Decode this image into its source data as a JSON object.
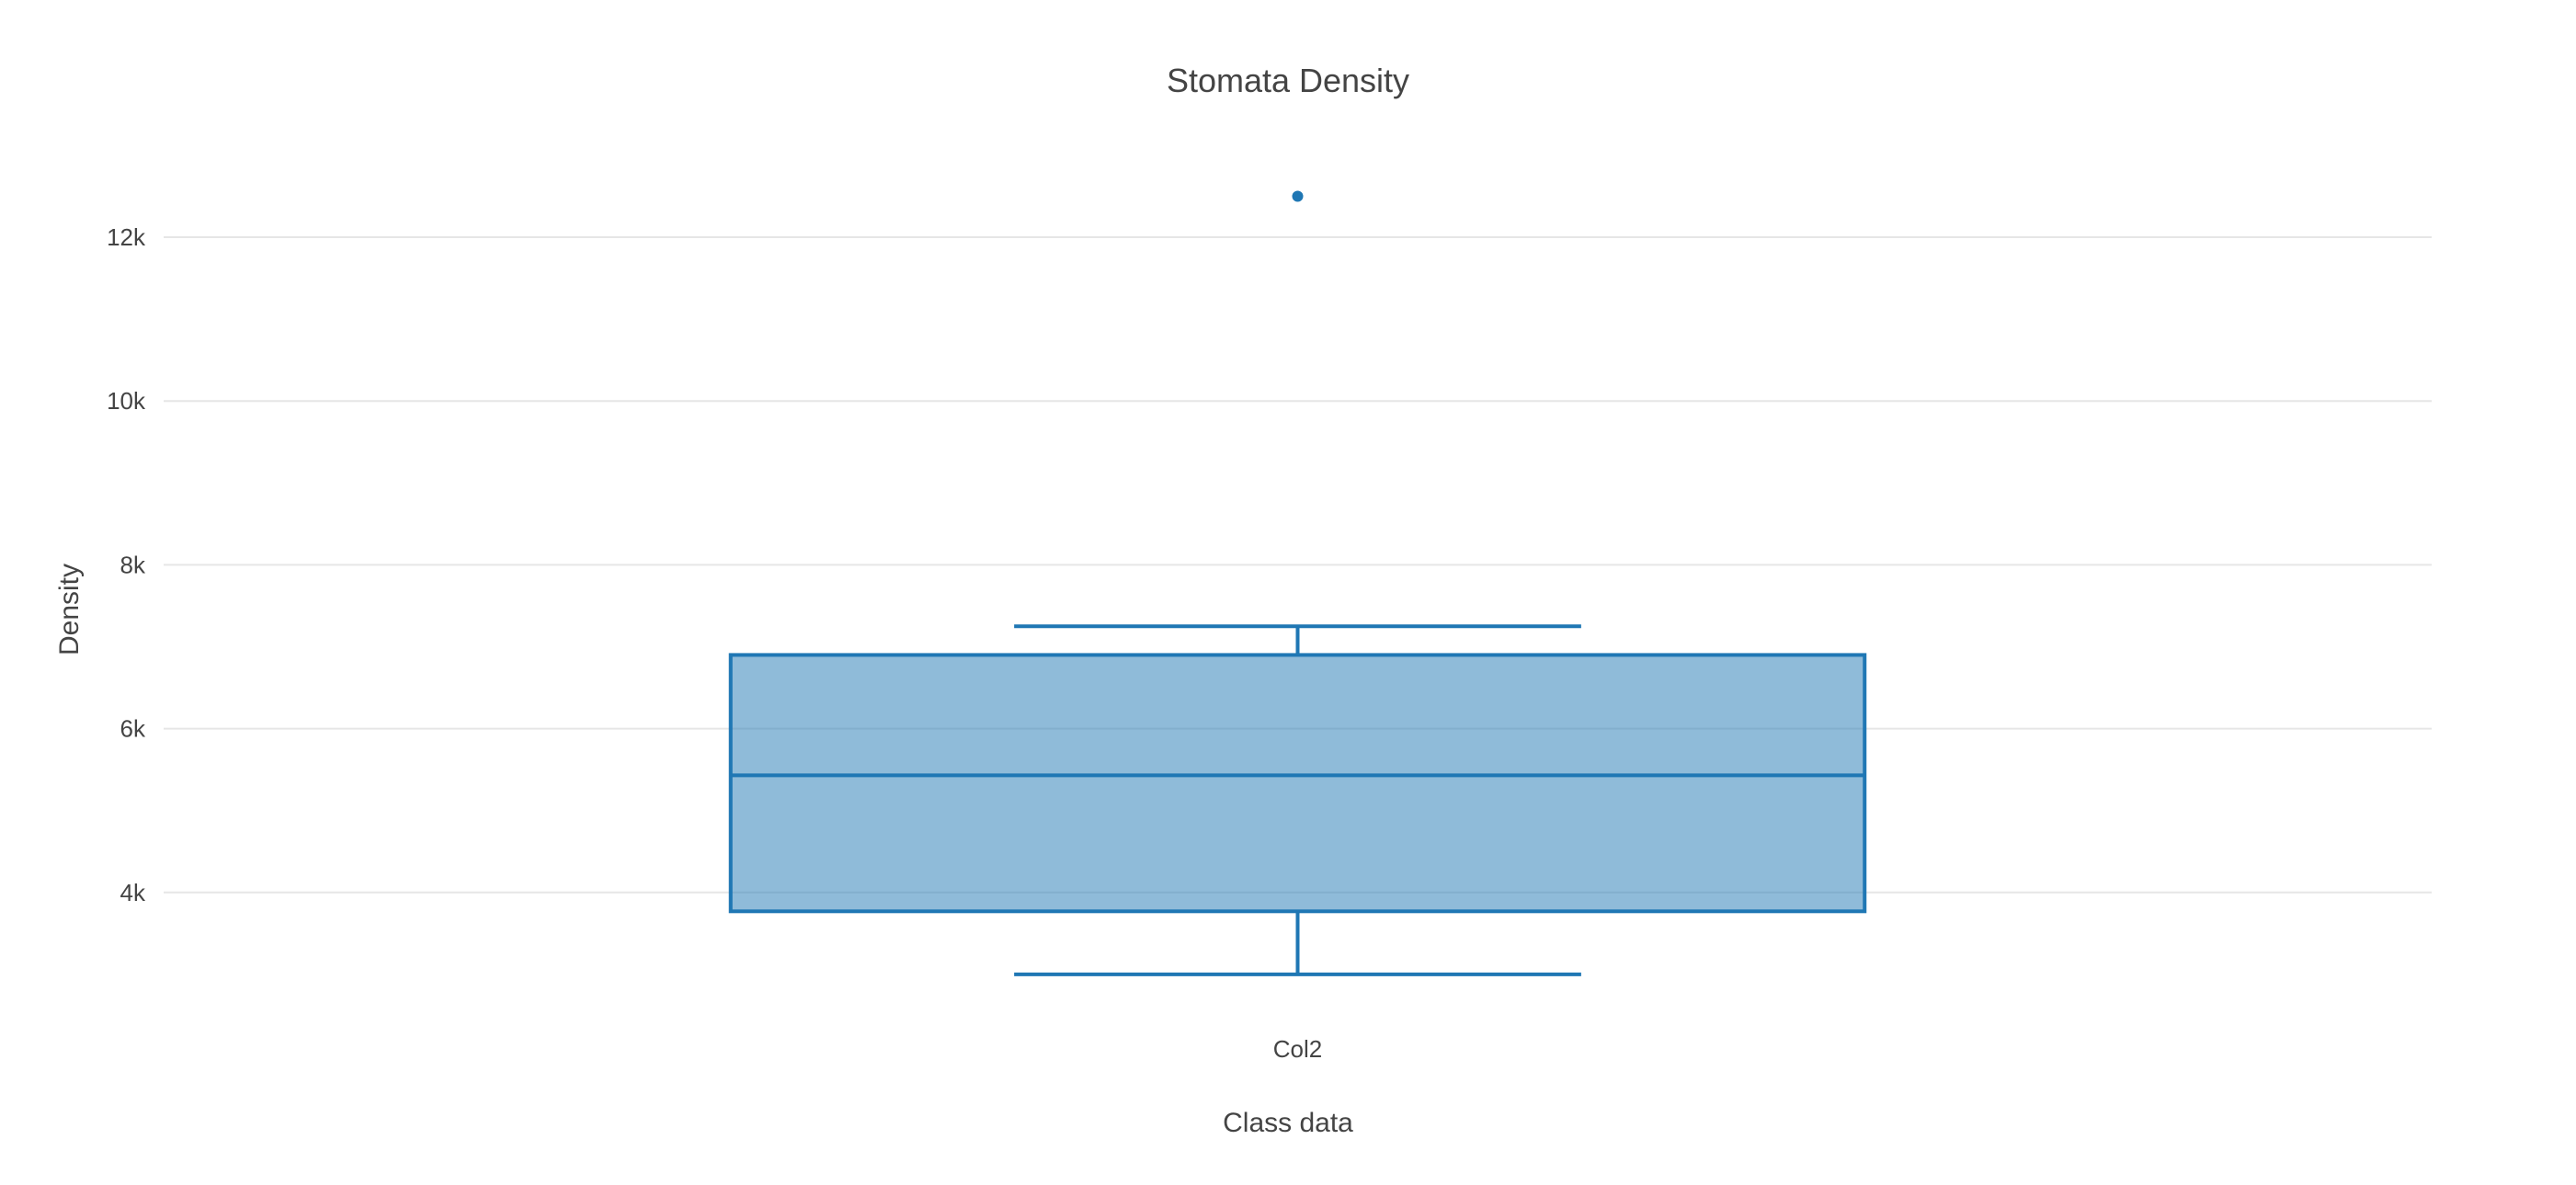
{
  "chart_data": {
    "type": "box",
    "title": "Stomata Density",
    "xlabel": "Class data",
    "ylabel": "Density",
    "categories": [
      "Col2"
    ],
    "y_ticks": [
      4000,
      6000,
      8000,
      10000,
      12000
    ],
    "y_tick_labels": [
      "4k",
      "6k",
      "8k",
      "10k",
      "12k"
    ],
    "ylim": [
      2550,
      13100
    ],
    "grid": "horizontal",
    "legend": "none",
    "series": [
      {
        "category": "Col2",
        "lower_fence": 3000,
        "q1": 3770,
        "median": 5430,
        "q3": 6900,
        "upper_fence": 7250,
        "outliers": [
          12500
        ]
      }
    ],
    "colors": {
      "box_line": "#1f77b4",
      "box_fill": "#1f77b4",
      "box_fill_opacity": 0.5,
      "grid": "#e6e6e6",
      "text": "#444444"
    }
  }
}
